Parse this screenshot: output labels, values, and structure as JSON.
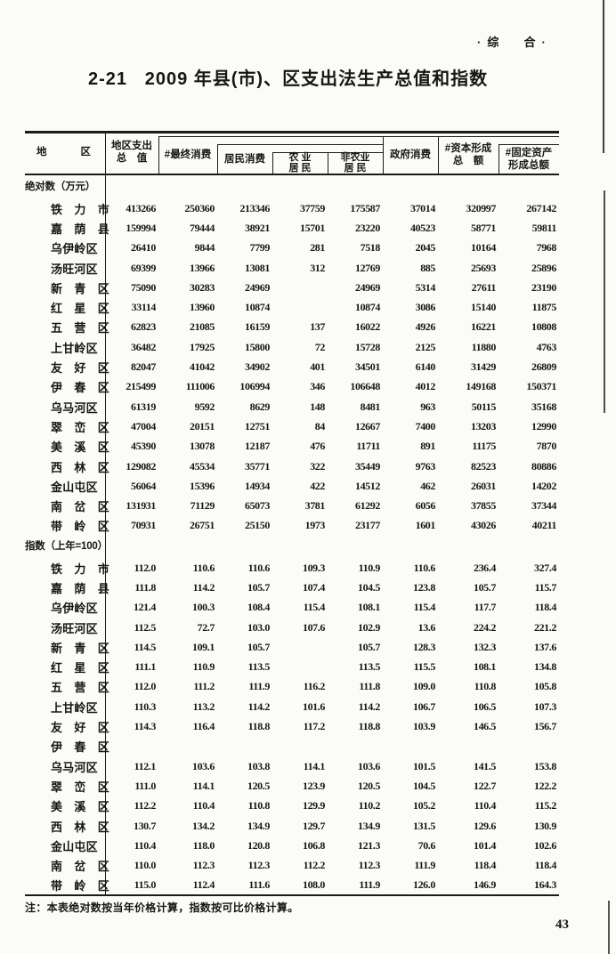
{
  "page": {
    "section_label": "·综  合·",
    "title": "2-21   2009 年县(市)、区支出法生产总值和指数",
    "note": "注：本表绝对数按当年价格计算，指数按可比价格计算。",
    "page_number": "43"
  },
  "header": {
    "region_left": "地",
    "region_right": "区",
    "columns": [
      {
        "l1": "地区支出",
        "l2": "总　值"
      },
      {
        "l1": "#最终消费",
        "l2": ""
      },
      {
        "l1": "居民消费",
        "l2": ""
      },
      {
        "l1": "农 业",
        "l2": "居 民"
      },
      {
        "l1": "非农业",
        "l2": "居 民"
      },
      {
        "l1": "政府消费",
        "l2": ""
      },
      {
        "l1": "#资本形成",
        "l2": "总　额"
      },
      {
        "l1": "#固定资产",
        "l2": "形成总额"
      }
    ]
  },
  "table": {
    "sections": [
      {
        "label": "绝对数（万元）",
        "rows": [
          {
            "region": "铁　力　市",
            "values": [
              "413266",
              "250360",
              "213346",
              "37759",
              "175587",
              "37014",
              "320997",
              "267142"
            ]
          },
          {
            "region": "嘉　荫　县",
            "values": [
              "159994",
              "79444",
              "38921",
              "15701",
              "23220",
              "40523",
              "58771",
              "59811"
            ]
          },
          {
            "region": "乌伊岭区",
            "values": [
              "26410",
              "9844",
              "7799",
              "281",
              "7518",
              "2045",
              "10164",
              "7968"
            ]
          },
          {
            "region": "汤旺河区",
            "values": [
              "69399",
              "13966",
              "13081",
              "312",
              "12769",
              "885",
              "25693",
              "25896"
            ]
          },
          {
            "region": "新　青　区",
            "values": [
              "75090",
              "30283",
              "24969",
              "",
              "24969",
              "5314",
              "27611",
              "23190"
            ]
          },
          {
            "region": "红　星　区",
            "values": [
              "33114",
              "13960",
              "10874",
              "",
              "10874",
              "3086",
              "15140",
              "11875"
            ]
          },
          {
            "region": "五　营　区",
            "values": [
              "62823",
              "21085",
              "16159",
              "137",
              "16022",
              "4926",
              "16221",
              "10808"
            ]
          },
          {
            "region": "上甘岭区",
            "values": [
              "36482",
              "17925",
              "15800",
              "72",
              "15728",
              "2125",
              "11880",
              "4763"
            ]
          },
          {
            "region": "友　好　区",
            "values": [
              "82047",
              "41042",
              "34902",
              "401",
              "34501",
              "6140",
              "31429",
              "26809"
            ]
          },
          {
            "region": "伊　春　区",
            "values": [
              "215499",
              "111006",
              "106994",
              "346",
              "106648",
              "4012",
              "149168",
              "150371"
            ]
          },
          {
            "region": "乌马河区",
            "values": [
              "61319",
              "9592",
              "8629",
              "148",
              "8481",
              "963",
              "50115",
              "35168"
            ]
          },
          {
            "region": "翠　峦　区",
            "values": [
              "47004",
              "20151",
              "12751",
              "84",
              "12667",
              "7400",
              "13203",
              "12990"
            ]
          },
          {
            "region": "美　溪　区",
            "values": [
              "45390",
              "13078",
              "12187",
              "476",
              "11711",
              "891",
              "11175",
              "7870"
            ]
          },
          {
            "region": "西　林　区",
            "values": [
              "129082",
              "45534",
              "35771",
              "322",
              "35449",
              "9763",
              "82523",
              "80886"
            ]
          },
          {
            "region": "金山屯区",
            "values": [
              "56064",
              "15396",
              "14934",
              "422",
              "14512",
              "462",
              "26031",
              "14202"
            ]
          },
          {
            "region": "南　岔　区",
            "values": [
              "131931",
              "71129",
              "65073",
              "3781",
              "61292",
              "6056",
              "37855",
              "37344"
            ]
          },
          {
            "region": "带　岭　区",
            "values": [
              "70931",
              "26751",
              "25150",
              "1973",
              "23177",
              "1601",
              "43026",
              "40211"
            ]
          }
        ]
      },
      {
        "label": "指数（上年=100）",
        "rows": [
          {
            "region": "铁　力　市",
            "values": [
              "112.0",
              "110.6",
              "110.6",
              "109.3",
              "110.9",
              "110.6",
              "236.4",
              "327.4"
            ]
          },
          {
            "region": "嘉　荫　县",
            "values": [
              "111.8",
              "114.2",
              "105.7",
              "107.4",
              "104.5",
              "123.8",
              "105.7",
              "115.7"
            ]
          },
          {
            "region": "乌伊岭区",
            "values": [
              "121.4",
              "100.3",
              "108.4",
              "115.4",
              "108.1",
              "115.4",
              "117.7",
              "118.4"
            ]
          },
          {
            "region": "汤旺河区",
            "values": [
              "112.5",
              "72.7",
              "103.0",
              "107.6",
              "102.9",
              "13.6",
              "224.2",
              "221.2"
            ]
          },
          {
            "region": "新　青　区",
            "values": [
              "114.5",
              "109.1",
              "105.7",
              "",
              "105.7",
              "128.3",
              "132.3",
              "137.6"
            ]
          },
          {
            "region": "红　星　区",
            "values": [
              "111.1",
              "110.9",
              "113.5",
              "",
              "113.5",
              "115.5",
              "108.1",
              "134.8"
            ]
          },
          {
            "region": "五　营　区",
            "values": [
              "112.0",
              "111.2",
              "111.9",
              "116.2",
              "111.8",
              "109.0",
              "110.8",
              "105.8"
            ]
          },
          {
            "region": "上甘岭区",
            "values": [
              "110.3",
              "113.2",
              "114.2",
              "101.6",
              "114.2",
              "106.7",
              "106.5",
              "107.3"
            ]
          },
          {
            "region": "友　好　区",
            "values": [
              "114.3",
              "116.4",
              "118.8",
              "117.2",
              "118.8",
              "103.9",
              "146.5",
              "156.7"
            ]
          },
          {
            "region": "伊　春　区",
            "values": [
              "",
              "",
              "",
              "",
              "",
              "",
              "",
              ""
            ]
          },
          {
            "region": "乌马河区",
            "values": [
              "112.1",
              "103.6",
              "103.8",
              "114.1",
              "103.6",
              "101.5",
              "141.5",
              "153.8"
            ]
          },
          {
            "region": "翠　峦　区",
            "values": [
              "111.0",
              "114.1",
              "120.5",
              "123.9",
              "120.5",
              "104.5",
              "122.7",
              "122.2"
            ]
          },
          {
            "region": "美　溪　区",
            "values": [
              "112.2",
              "110.4",
              "110.8",
              "129.9",
              "110.2",
              "105.2",
              "110.4",
              "115.2"
            ]
          },
          {
            "region": "西　林　区",
            "values": [
              "130.7",
              "134.2",
              "134.9",
              "129.7",
              "134.9",
              "131.5",
              "129.6",
              "130.9"
            ]
          },
          {
            "region": "金山屯区",
            "values": [
              "110.4",
              "118.0",
              "120.8",
              "106.8",
              "121.3",
              "70.6",
              "101.4",
              "102.6"
            ]
          },
          {
            "region": "南　岔　区",
            "values": [
              "110.0",
              "112.3",
              "112.3",
              "112.2",
              "112.3",
              "111.9",
              "118.4",
              "118.4"
            ]
          },
          {
            "region": "带　岭　区",
            "values": [
              "115.0",
              "112.4",
              "111.6",
              "108.0",
              "111.9",
              "126.0",
              "146.9",
              "164.3"
            ]
          }
        ]
      }
    ]
  }
}
